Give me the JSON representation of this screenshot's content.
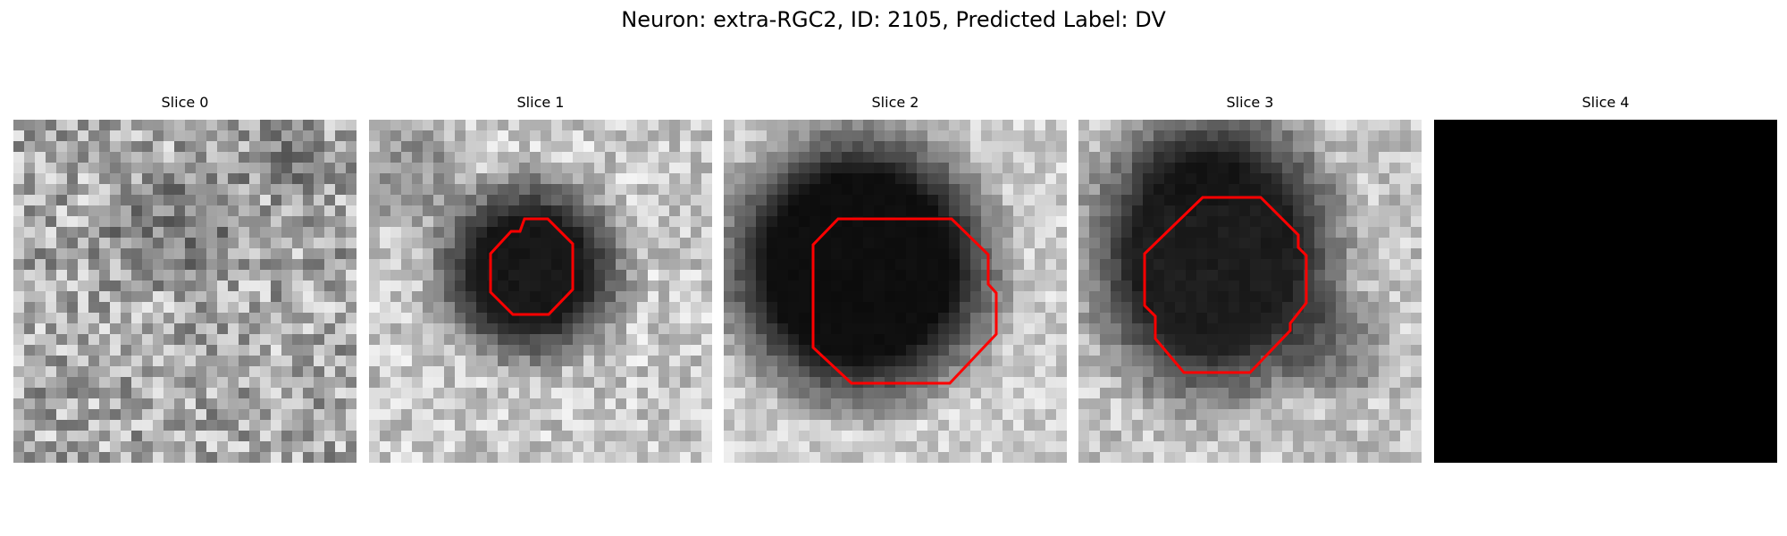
{
  "title": "Neuron: extra-RGC2, ID: 2105, Predicted Label: DV",
  "panels": [
    {
      "title": "Slice 0",
      "image": "noise-gray-slice",
      "contour_color": "#ff0000",
      "has_contour": false
    },
    {
      "title": "Slice 1",
      "image": "dark-cell-small-slice",
      "contour_color": "#ff0000",
      "has_contour": true
    },
    {
      "title": "Slice 2",
      "image": "dark-cell-large-slice",
      "contour_color": "#ff0000",
      "has_contour": true
    },
    {
      "title": "Slice 3",
      "image": "dark-cell-offset-slice",
      "contour_color": "#ff0000",
      "has_contour": true
    },
    {
      "title": "Slice 4",
      "image": "black-slice",
      "contour_color": "#ff0000",
      "has_contour": false
    }
  ]
}
